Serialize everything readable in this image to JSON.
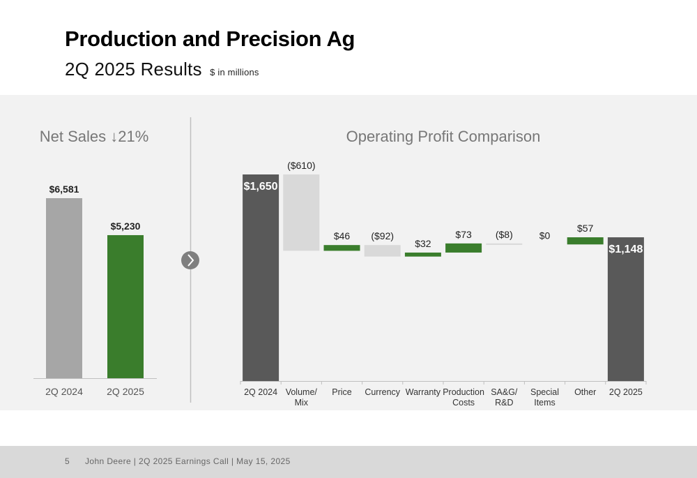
{
  "header": {
    "title": "Production and Precision Ag",
    "subtitle": "2Q 2025 Results",
    "units": "$ in millions"
  },
  "footer": {
    "page": "5",
    "text": "John Deere | 2Q 2025 Earnings Call | May 15, 2025"
  },
  "chart_data": [
    {
      "type": "bar",
      "title": "Net Sales",
      "title_change": "21%",
      "title_arrow": "down-arrow",
      "categories": [
        "2Q 2024",
        "2Q 2025"
      ],
      "values": [
        6581,
        5230
      ],
      "value_labels": [
        "$6,581",
        "$5,230"
      ],
      "colors": [
        "#a6a6a6",
        "#3a7d2c"
      ],
      "ylim": [
        0,
        7400
      ],
      "grid": false,
      "legend": "none"
    },
    {
      "type": "waterfall",
      "title": "Operating Profit Comparison",
      "categories": [
        "2Q 2024",
        "Volume/\nMix",
        "Price",
        "Currency",
        "Warranty",
        "Production\nCosts",
        "SA&G/\nR&D",
        "Special\nItems",
        "Other",
        "2Q 2025"
      ],
      "values": [
        1650,
        -610,
        46,
        -92,
        32,
        73,
        -8,
        0,
        57,
        1148
      ],
      "kinds": [
        "total",
        "delta",
        "delta",
        "delta",
        "delta",
        "delta",
        "delta",
        "delta",
        "delta",
        "total"
      ],
      "value_labels": [
        "$1,650",
        "($610)",
        "$46",
        "($92)",
        "$32",
        "$73",
        "($8)",
        "$0",
        "$57",
        "$1,148"
      ],
      "colors": {
        "total": "#595959",
        "increase": "#3a7d2c",
        "decrease": "#d9d9d9"
      },
      "ylim": [
        0,
        1650
      ],
      "grid": false,
      "legend": "none"
    }
  ]
}
